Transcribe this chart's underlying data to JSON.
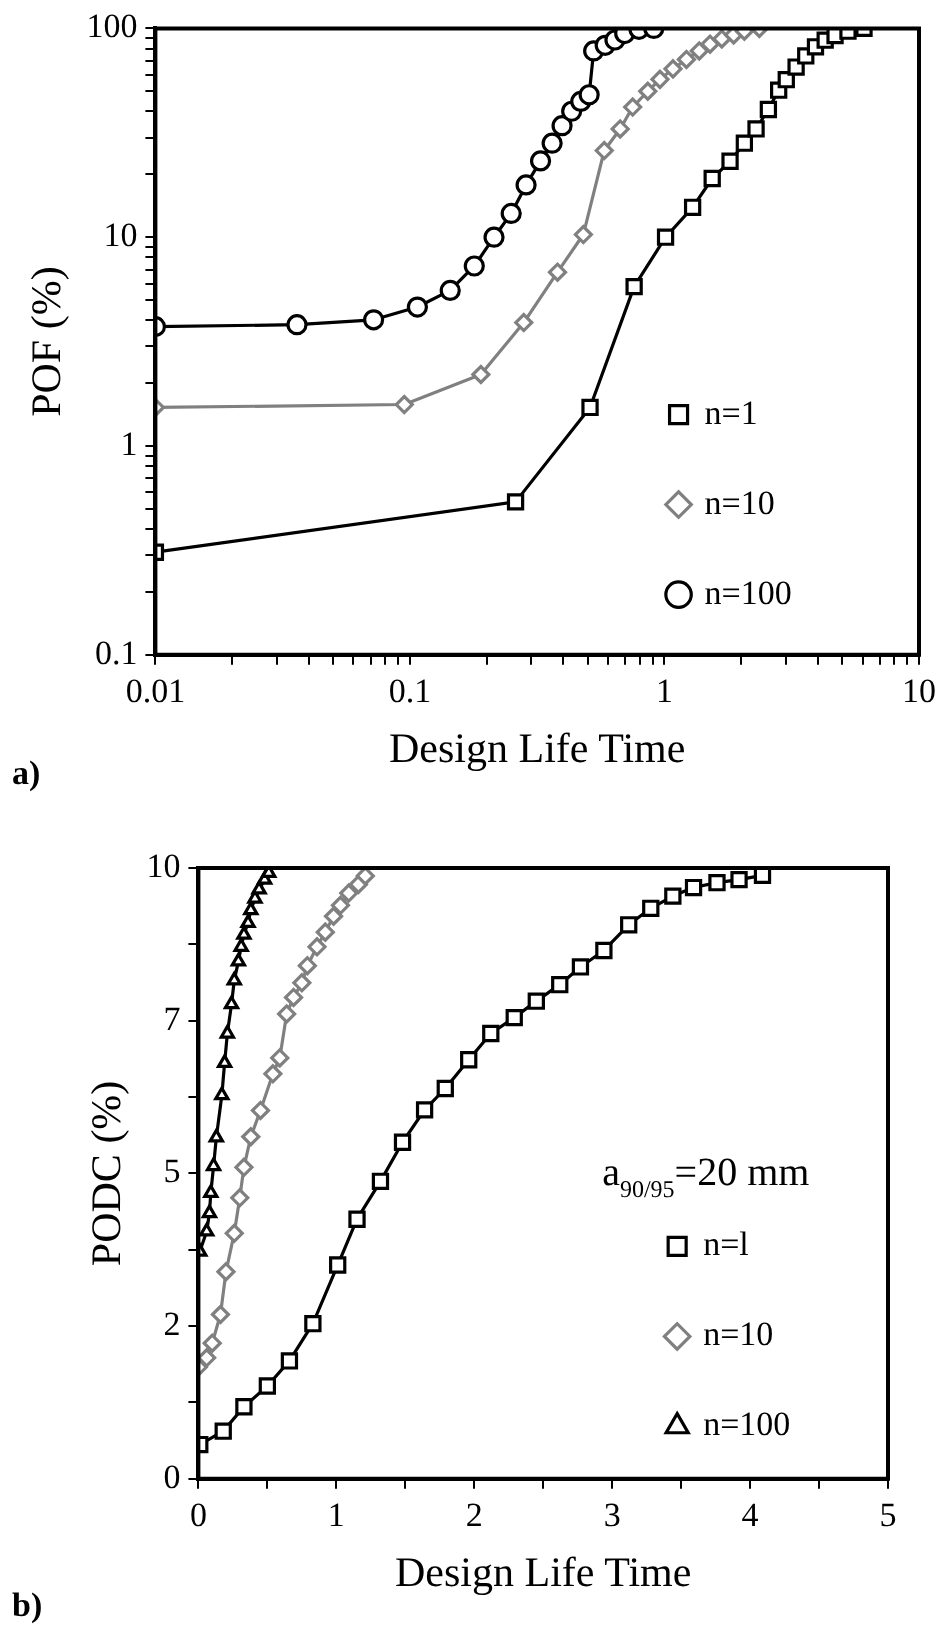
{
  "chart_data": [
    {
      "type": "line",
      "xlabel": "Design Life Time",
      "ylabel": "POF (%)",
      "log": "xy",
      "legend": "right",
      "xlim": [
        0.01,
        10
      ],
      "ylim": [
        0.1,
        100
      ],
      "xticks": [
        0.01,
        {
          "value": 0.02,
          "label": null
        },
        {
          "value": 0.03,
          "label": null
        },
        {
          "value": 0.04,
          "label": null
        },
        {
          "value": 0.05,
          "label": null
        },
        {
          "value": 0.06,
          "label": null
        },
        {
          "value": 0.07,
          "label": null
        },
        {
          "value": 0.08,
          "label": null
        },
        {
          "value": 0.09,
          "label": null
        },
        0.1,
        {
          "value": 0.2,
          "label": null
        },
        {
          "value": 0.3,
          "label": null
        },
        {
          "value": 0.4,
          "label": null
        },
        {
          "value": 0.5,
          "label": null
        },
        {
          "value": 0.6,
          "label": null
        },
        {
          "value": 0.7,
          "label": null
        },
        {
          "value": 0.8,
          "label": null
        },
        {
          "value": 0.9,
          "label": null
        },
        1,
        {
          "value": 2,
          "label": null
        },
        {
          "value": 3,
          "label": null
        },
        {
          "value": 4,
          "label": null
        },
        {
          "value": 5,
          "label": null
        },
        {
          "value": 6,
          "label": null
        },
        {
          "value": 7,
          "label": null
        },
        {
          "value": 8,
          "label": null
        },
        {
          "value": 9,
          "label": null
        },
        10
      ],
      "yticks": [
        0.1,
        {
          "value": 0.2,
          "label": null
        },
        {
          "value": 0.3,
          "label": null
        },
        {
          "value": 0.4,
          "label": null
        },
        {
          "value": 0.5,
          "label": null
        },
        {
          "value": 0.6,
          "label": null
        },
        {
          "value": 0.7,
          "label": null
        },
        {
          "value": 0.8,
          "label": null
        },
        {
          "value": 0.9,
          "label": null
        },
        1,
        {
          "value": 2,
          "label": null
        },
        {
          "value": 3,
          "label": null
        },
        {
          "value": 4,
          "label": null
        },
        {
          "value": 5,
          "label": null
        },
        {
          "value": 6,
          "label": null
        },
        {
          "value": 7,
          "label": null
        },
        {
          "value": 8,
          "label": null
        },
        {
          "value": 9,
          "label": null
        },
        10,
        {
          "value": 20,
          "label": null
        },
        {
          "value": 30,
          "label": null
        },
        {
          "value": 40,
          "label": null
        },
        {
          "value": 50,
          "label": null
        },
        {
          "value": 60,
          "label": null
        },
        {
          "value": 70,
          "label": null
        },
        {
          "value": 80,
          "label": null
        },
        {
          "value": 90,
          "label": null
        },
        100
      ],
      "series": [
        {
          "name": "n=1",
          "color": "#000000",
          "marker": "square",
          "x": [
            0.01,
            0.26,
            0.51,
            0.76,
            1.01,
            1.29,
            1.54,
            1.81,
            2.06,
            2.29,
            2.56,
            2.81,
            3.01,
            3.29,
            3.59,
            3.92,
            4.28,
            4.68,
            5.26,
            6.08
          ],
          "values": [
            0.31,
            0.54,
            1.53,
            5.8,
            10,
            13.9,
            19.1,
            23.1,
            28.2,
            33,
            40.9,
            50.6,
            56.8,
            65.3,
            73.8,
            81.6,
            87.8,
            92.5,
            97,
            100
          ]
        },
        {
          "name": "n=10",
          "color": "#808080",
          "marker": "diamond",
          "x": [
            0.01,
            0.095,
            0.19,
            0.28,
            0.38,
            0.48,
            0.58,
            0.67,
            0.75,
            0.86,
            0.96,
            1.08,
            1.22,
            1.37,
            1.51,
            1.68,
            1.87,
            2.06,
            2.36
          ],
          "values": [
            1.53,
            1.58,
            2.2,
            3.9,
            6.8,
            10.3,
            26,
            33,
            42,
            50,
            57,
            64,
            71,
            78,
            84,
            89,
            93,
            97,
            100
          ]
        },
        {
          "name": "n=100",
          "color": "#000000",
          "marker": "circle",
          "x": [
            0.01,
            0.036,
            0.072,
            0.107,
            0.144,
            0.179,
            0.214,
            0.25,
            0.286,
            0.326,
            0.362,
            0.396,
            0.432,
            0.469,
            0.506,
            0.527,
            0.585,
            0.639,
            0.698,
            0.794,
            0.908
          ],
          "values": [
            3.73,
            3.81,
            4.02,
            4.63,
            5.56,
            7.28,
            10,
            13,
            17.8,
            23.2,
            28.2,
            34.2,
            40.1,
            44.7,
            48.1,
            78,
            83,
            88,
            94.5,
            99,
            100
          ]
        }
      ],
      "annotations": [
        "a)"
      ]
    },
    {
      "type": "line",
      "xlabel": "Design Life Time",
      "ylabel": "PODC (%)",
      "legend": "right",
      "xlim": [
        0,
        5
      ],
      "ylim": [
        0,
        10
      ],
      "xticks": [
        0,
        {
          "value": 0.5,
          "label": null
        },
        1,
        {
          "value": 1.5,
          "label": null
        },
        2,
        {
          "value": 2.5,
          "label": null
        },
        3,
        {
          "value": 3.5,
          "label": null
        },
        4,
        {
          "value": 4.5,
          "label": null
        },
        5
      ],
      "yticks": [
        0,
        {
          "value": 1.25,
          "label": null
        },
        {
          "value": 2.5,
          "label": "2"
        },
        {
          "value": 3.75,
          "label": null
        },
        5,
        {
          "value": 6.25,
          "label": null
        },
        {
          "value": 7.5,
          "label": "7"
        },
        {
          "value": 8.75,
          "label": null
        },
        10
      ],
      "series": [
        {
          "name": "n=l",
          "color": "#000000",
          "marker": "square",
          "x": [
            0.01,
            0.18,
            0.33,
            0.5,
            0.66,
            0.83,
            1.01,
            1.15,
            1.32,
            1.48,
            1.64,
            1.79,
            1.96,
            2.12,
            2.29,
            2.45,
            2.62,
            2.77,
            2.94,
            3.12,
            3.28,
            3.44,
            3.59,
            3.76,
            3.92,
            4.09
          ],
          "values": [
            0.56,
            0.78,
            1.18,
            1.52,
            1.93,
            2.54,
            3.5,
            4.25,
            4.87,
            5.51,
            6.04,
            6.39,
            6.86,
            7.29,
            7.55,
            7.82,
            8.09,
            8.38,
            8.65,
            9.07,
            9.34,
            9.54,
            9.68,
            9.76,
            9.81,
            9.88
          ]
        },
        {
          "name": "n=10",
          "color": "#808080",
          "marker": "diamond",
          "x": [
            0,
            0.06,
            0.1,
            0.16,
            0.2,
            0.26,
            0.3,
            0.33,
            0.38,
            0.45,
            0.54,
            0.59,
            0.64,
            0.69,
            0.75,
            0.79,
            0.86,
            0.92,
            0.98,
            1.03,
            1.09,
            1.16,
            1.21
          ],
          "values": [
            1.83,
            1.98,
            2.22,
            2.69,
            3.39,
            4.02,
            4.6,
            5.1,
            5.6,
            6.03,
            6.63,
            6.89,
            7.61,
            7.88,
            8.12,
            8.4,
            8.71,
            8.95,
            9.21,
            9.39,
            9.59,
            9.73,
            9.87
          ]
        },
        {
          "name": "n=100",
          "color": "#000000",
          "marker": "triangle",
          "x": [
            0.01,
            0.06,
            0.08,
            0.09,
            0.11,
            0.13,
            0.17,
            0.19,
            0.21,
            0.24,
            0.26,
            0.29,
            0.31,
            0.33,
            0.36,
            0.38,
            0.41,
            0.44,
            0.48,
            0.51
          ],
          "values": [
            3.72,
            4.05,
            4.35,
            4.68,
            5.12,
            5.59,
            6.28,
            6.81,
            7.29,
            7.77,
            8.16,
            8.47,
            8.71,
            8.91,
            9.1,
            9.31,
            9.5,
            9.65,
            9.81,
            9.92
          ]
        }
      ],
      "annotations": [
        "a$_{90/95}$=20 mm",
        "b)"
      ]
    }
  ]
}
